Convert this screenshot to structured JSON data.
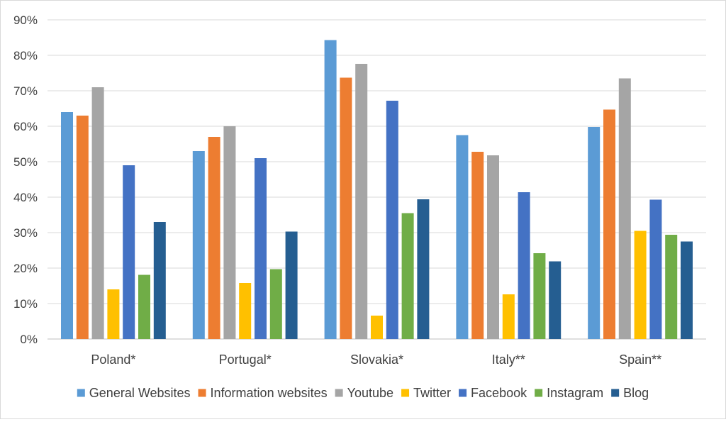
{
  "chart_data": {
    "type": "bar",
    "title": "",
    "xlabel": "",
    "ylabel": "",
    "ylim": [
      0,
      0.9
    ],
    "y_ticks": [
      "0%",
      "10%",
      "20%",
      "30%",
      "40%",
      "50%",
      "60%",
      "70%",
      "80%",
      "90%"
    ],
    "grid": true,
    "legend_position": "bottom",
    "categories": [
      "Poland*",
      "Portugal*",
      "Slovakia*",
      "Italy**",
      "Spain**"
    ],
    "series": [
      {
        "name": "General Websites",
        "color": "#5b9bd5",
        "values": [
          0.64,
          0.53,
          0.843,
          0.575,
          0.598
        ]
      },
      {
        "name": "Information websites",
        "color": "#ed7d31",
        "values": [
          0.63,
          0.57,
          0.737,
          0.528,
          0.647
        ]
      },
      {
        "name": "Youtube",
        "color": "#a5a5a5",
        "values": [
          0.71,
          0.6,
          0.776,
          0.518,
          0.735
        ]
      },
      {
        "name": "Twitter",
        "color": "#ffc000",
        "values": [
          0.14,
          0.158,
          0.066,
          0.126,
          0.305
        ]
      },
      {
        "name": "Facebook",
        "color": "#4472c4",
        "values": [
          0.49,
          0.51,
          0.672,
          0.414,
          0.393
        ]
      },
      {
        "name": "Instagram",
        "color": "#70ad47",
        "values": [
          0.181,
          0.197,
          0.355,
          0.242,
          0.294
        ]
      },
      {
        "name": "Blog",
        "color": "#255e91",
        "values": [
          0.33,
          0.303,
          0.394,
          0.219,
          0.275
        ]
      }
    ]
  }
}
